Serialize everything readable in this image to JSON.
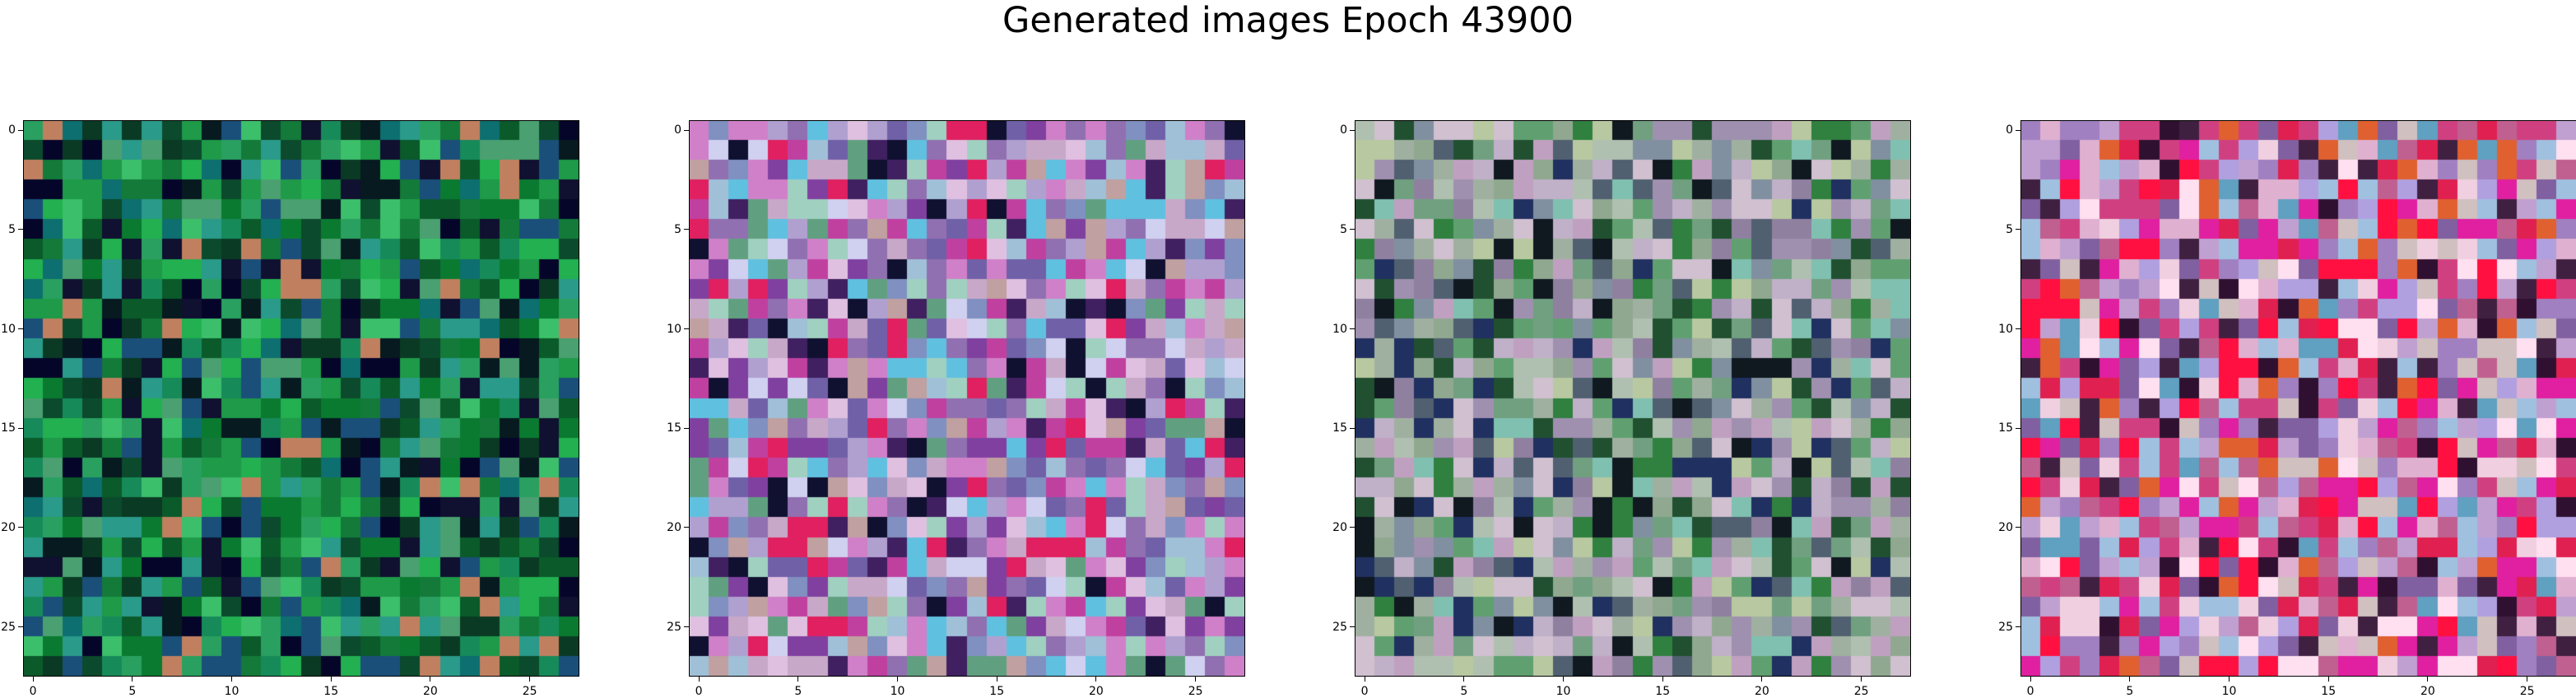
{
  "title": "Generated images Epoch 43900",
  "grid_size": 28,
  "ticks": [
    0,
    5,
    10,
    15,
    20,
    25
  ],
  "tick_labels": [
    "0",
    "5",
    "10",
    "15",
    "20",
    "25"
  ],
  "panels": [
    {
      "name": "generated-image-1",
      "palette": [
        "#0a5a2a",
        "#137a3a",
        "#1e9a48",
        "#0b4a2c",
        "#2aa060",
        "#0a3a24",
        "#3cbf6a",
        "#178a5a",
        "#0d6f6f",
        "#1a4f7a",
        "#061a20",
        "#05052a",
        "#2a9a8a",
        "#4aa070",
        "#c08060",
        "#101030",
        "#0a7a30",
        "#22b050"
      ],
      "seed": 17
    },
    {
      "name": "generated-image-2",
      "palette": [
        "#b0a0d0",
        "#a0c0d8",
        "#c8a8c8",
        "#8090c0",
        "#d080c8",
        "#7060a8",
        "#e0c0e0",
        "#60a080",
        "#c040a0",
        "#402060",
        "#101030",
        "#a0d0c0",
        "#d0d0f0",
        "#9070b0",
        "#e02060",
        "#60c0e0",
        "#c0a0a0",
        "#8040a0"
      ],
      "seed": 43
    },
    {
      "name": "generated-image-3",
      "palette": [
        "#90a890",
        "#a0b0a0",
        "#c0b0c8",
        "#70a080",
        "#b0c0b0",
        "#8090a0",
        "#308040",
        "#205030",
        "#101820",
        "#c0a0c0",
        "#a090b0",
        "#60a070",
        "#d0c0d0",
        "#506070",
        "#80c0b0",
        "#203060",
        "#9080a0",
        "#b8c8a0"
      ],
      "seed": 71
    },
    {
      "name": "generated-image-4",
      "palette": [
        "#c0a0d0",
        "#e0b0d0",
        "#d04080",
        "#e02050",
        "#a080c0",
        "#f0d0e0",
        "#8060a0",
        "#c06090",
        "#ffe0f0",
        "#301030",
        "#60a0c0",
        "#d0c0c0",
        "#e020a0",
        "#b0a0e0",
        "#e06030",
        "#402040",
        "#a0c0e0",
        "#ff1040"
      ],
      "seed": 97
    }
  ]
}
